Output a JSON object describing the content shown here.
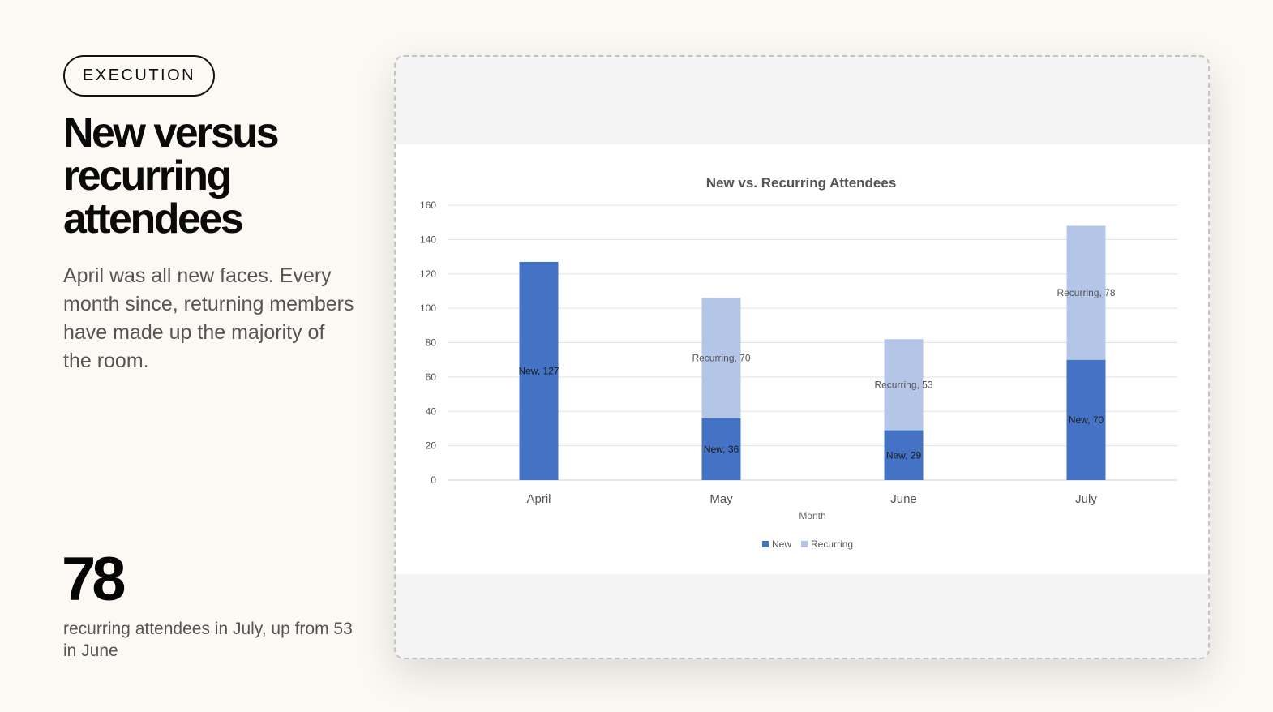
{
  "badge": "EXECUTION",
  "title": "New versus recurring attendees",
  "description": "April was all new faces. Every month since, returning members have made up the majority of the room.",
  "stat": {
    "value": "78",
    "caption": "recurring attendees in July, up from 53 in June"
  },
  "chart_data": {
    "type": "bar",
    "stacked": true,
    "title": "New vs. Recurring Attendees",
    "xlabel": "Month",
    "ylabel": "",
    "categories": [
      "April",
      "May",
      "June",
      "July"
    ],
    "series": [
      {
        "name": "New",
        "values": [
          127,
          36,
          29,
          70
        ],
        "color": "#4472c4",
        "labels": [
          "New, 127",
          "New, 36",
          "New, 29",
          "New, 70"
        ]
      },
      {
        "name": "Recurring",
        "values": [
          0,
          70,
          53,
          78
        ],
        "color": "#b4c6e7",
        "labels": [
          "",
          "Recurring, 70",
          "Recurring, 53",
          "Recurring, 78"
        ]
      }
    ],
    "ylim": [
      0,
      160
    ],
    "yticks": [
      "0",
      "20",
      "40",
      "60",
      "80",
      "100",
      "120",
      "140",
      "160"
    ],
    "grid": true,
    "legend": "bottom"
  }
}
